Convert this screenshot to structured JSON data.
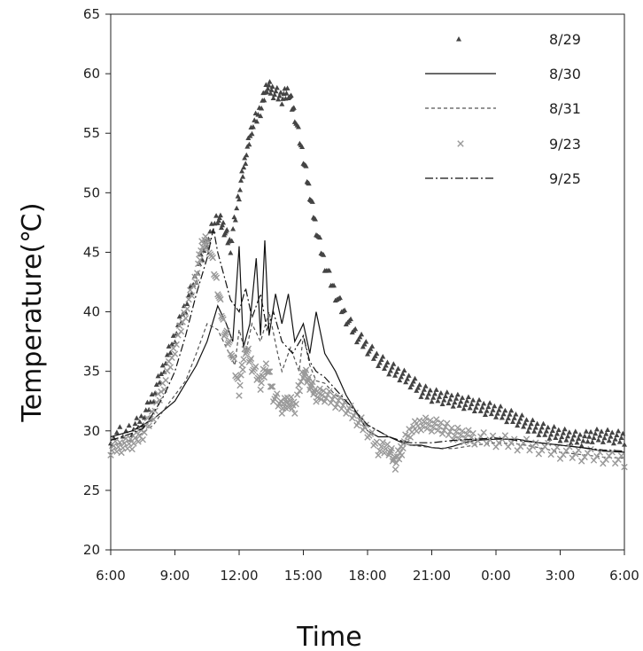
{
  "chart_data": {
    "type": "scatter",
    "title": "",
    "xlabel": "Time",
    "ylabel": "Temperature(℃)",
    "x_ticks": [
      "6:00",
      "9:00",
      "12:00",
      "15:00",
      "18:00",
      "21:00",
      "0:00",
      "3:00",
      "6:00"
    ],
    "x_range_hours": [
      6,
      30
    ],
    "ylim": [
      20,
      65
    ],
    "y_ticks": [
      20,
      25,
      30,
      35,
      40,
      45,
      50,
      55,
      60,
      65
    ],
    "grid": false,
    "legend_position": "top-right",
    "series": [
      {
        "name": "8/29",
        "style": "triangle-markers",
        "color": "#444444",
        "x_hours": [
          6,
          7,
          7.5,
          8,
          8.5,
          9,
          9.5,
          10,
          10.5,
          11,
          11.3,
          11.6,
          12,
          12.3,
          12.6,
          13,
          13.3,
          13.6,
          14,
          14.3,
          14.6,
          15,
          15.3,
          15.6,
          16,
          16.5,
          17,
          17.5,
          18,
          18.5,
          19,
          19.5,
          20,
          20.5,
          21,
          21.5,
          22,
          22.5,
          23,
          23.5,
          24,
          24.5,
          25,
          25.5,
          26,
          26.5,
          27,
          27.5,
          28,
          28.5,
          29,
          29.5,
          30
        ],
        "values": [
          29.5,
          30.2,
          31,
          33,
          35.5,
          38,
          40.5,
          43,
          46,
          48,
          47,
          45.5,
          50,
          53,
          55.5,
          57,
          59,
          58.5,
          58,
          58.5,
          56.5,
          53,
          50,
          47,
          44,
          41.5,
          39.5,
          38,
          37,
          36,
          35.3,
          34.8,
          34.2,
          33.4,
          33,
          32.8,
          32.6,
          32.4,
          32.2,
          31.9,
          31.7,
          31.3,
          31,
          30.5,
          30.2,
          29.9,
          29.7,
          29.5,
          29.3,
          29.6,
          29.6,
          29.5,
          29.4
        ]
      },
      {
        "name": "8/30",
        "style": "solid",
        "color": "#111111",
        "x_hours": [
          6,
          7,
          8,
          9,
          9.5,
          10,
          10.5,
          11,
          11.4,
          11.7,
          12,
          12.2,
          12.5,
          12.8,
          13,
          13.2,
          13.4,
          13.7,
          14,
          14.3,
          14.6,
          15,
          15.3,
          15.6,
          16,
          16.5,
          17,
          17.5,
          18,
          18.5,
          19,
          19.5,
          20,
          20.5,
          21,
          21.5,
          22,
          22.5,
          23,
          24,
          25,
          26,
          27,
          28,
          29,
          30
        ],
        "values": [
          29.5,
          30,
          31,
          32.5,
          34,
          35.5,
          37.5,
          40.5,
          39,
          37.5,
          45.5,
          37,
          39,
          44.5,
          38,
          46,
          38,
          41.5,
          39,
          41.5,
          37.5,
          39,
          36.5,
          40,
          36.5,
          35,
          33,
          31.5,
          30,
          29.5,
          29.5,
          29.1,
          28.8,
          28.8,
          28.6,
          28.5,
          28.7,
          29,
          29.2,
          29.3,
          29.3,
          29,
          28.8,
          28.6,
          28.3,
          28.2
        ]
      },
      {
        "name": "8/31",
        "style": "dashed",
        "color": "#555555",
        "x_hours": [
          6,
          7,
          8,
          8.5,
          9,
          9.5,
          10,
          10.5,
          11,
          11.4,
          11.8,
          12,
          12.3,
          12.6,
          13,
          13.4,
          13.8,
          14,
          14.4,
          14.8,
          15,
          15.3,
          15.6,
          16,
          16.5,
          17,
          17.5,
          18,
          18.5,
          19,
          19.5,
          20,
          21,
          22,
          23,
          24,
          25,
          26,
          27,
          28,
          29,
          30
        ],
        "values": [
          28.7,
          29.2,
          30.5,
          31.8,
          33,
          34.2,
          36.5,
          39,
          38.5,
          37,
          35.5,
          38.5,
          36.5,
          39,
          37.5,
          40,
          36.5,
          35,
          37,
          35,
          38,
          35.5,
          34.2,
          34,
          33,
          32.5,
          31.5,
          30.5,
          30,
          29.5,
          29.2,
          28.8,
          28.6,
          28.5,
          28.8,
          29,
          28.9,
          28.6,
          28.2,
          28,
          27.8,
          27.7
        ]
      },
      {
        "name": "9/23",
        "style": "x-markers",
        "color": "#999999",
        "x_hours": [
          6,
          6.5,
          7,
          7.5,
          8,
          8.5,
          9,
          9.5,
          10,
          10.3,
          10.6,
          11,
          11.3,
          11.6,
          12,
          12.3,
          12.6,
          13,
          13.3,
          13.6,
          14,
          14.3,
          14.6,
          15,
          15.3,
          15.6,
          16,
          16.5,
          17,
          17.5,
          18,
          18.5,
          19,
          19.3,
          19.6,
          20,
          20.5,
          21,
          21.5,
          22,
          22.5,
          23,
          24,
          25,
          26,
          27,
          28,
          29,
          30
        ],
        "values": [
          28.5,
          28.7,
          29,
          29.8,
          31.5,
          34,
          37,
          40,
          43,
          46,
          45.5,
          42,
          38.5,
          37,
          33.5,
          37,
          35.5,
          34,
          35.5,
          33,
          32,
          32.5,
          32,
          35,
          34,
          33,
          33,
          32.5,
          32,
          31,
          30,
          28.5,
          28.5,
          27.3,
          28.5,
          30,
          30.6,
          30.5,
          30.3,
          29.8,
          29.6,
          29.4,
          29.2,
          28.9,
          28.6,
          28.2,
          28,
          27.8,
          27.5
        ]
      },
      {
        "name": "9/25",
        "style": "dash-dot",
        "color": "#111111",
        "x_hours": [
          6,
          7,
          7.5,
          8,
          8.5,
          9,
          9.5,
          10,
          10.5,
          10.8,
          11,
          11.3,
          11.6,
          12,
          12.3,
          12.6,
          13,
          13.3,
          13.6,
          14,
          14.5,
          15,
          15.3,
          15.6,
          16,
          16.5,
          17,
          17.5,
          18,
          18.5,
          19,
          19.5,
          20,
          21,
          22,
          23,
          24,
          25,
          26,
          27,
          28,
          29,
          30
        ],
        "values": [
          29.2,
          29.8,
          30.2,
          31.5,
          33,
          35,
          38,
          41.5,
          44.5,
          47,
          45,
          43,
          41,
          40,
          42,
          39.5,
          41.5,
          38.5,
          40,
          37.5,
          36.5,
          38,
          35.8,
          35,
          34.5,
          33.5,
          32.5,
          31.5,
          30.5,
          30,
          29.5,
          29.2,
          29,
          29,
          29.2,
          29.3,
          29.4,
          29.2,
          29,
          28.8,
          28.6,
          28.4,
          28.3
        ]
      }
    ]
  }
}
